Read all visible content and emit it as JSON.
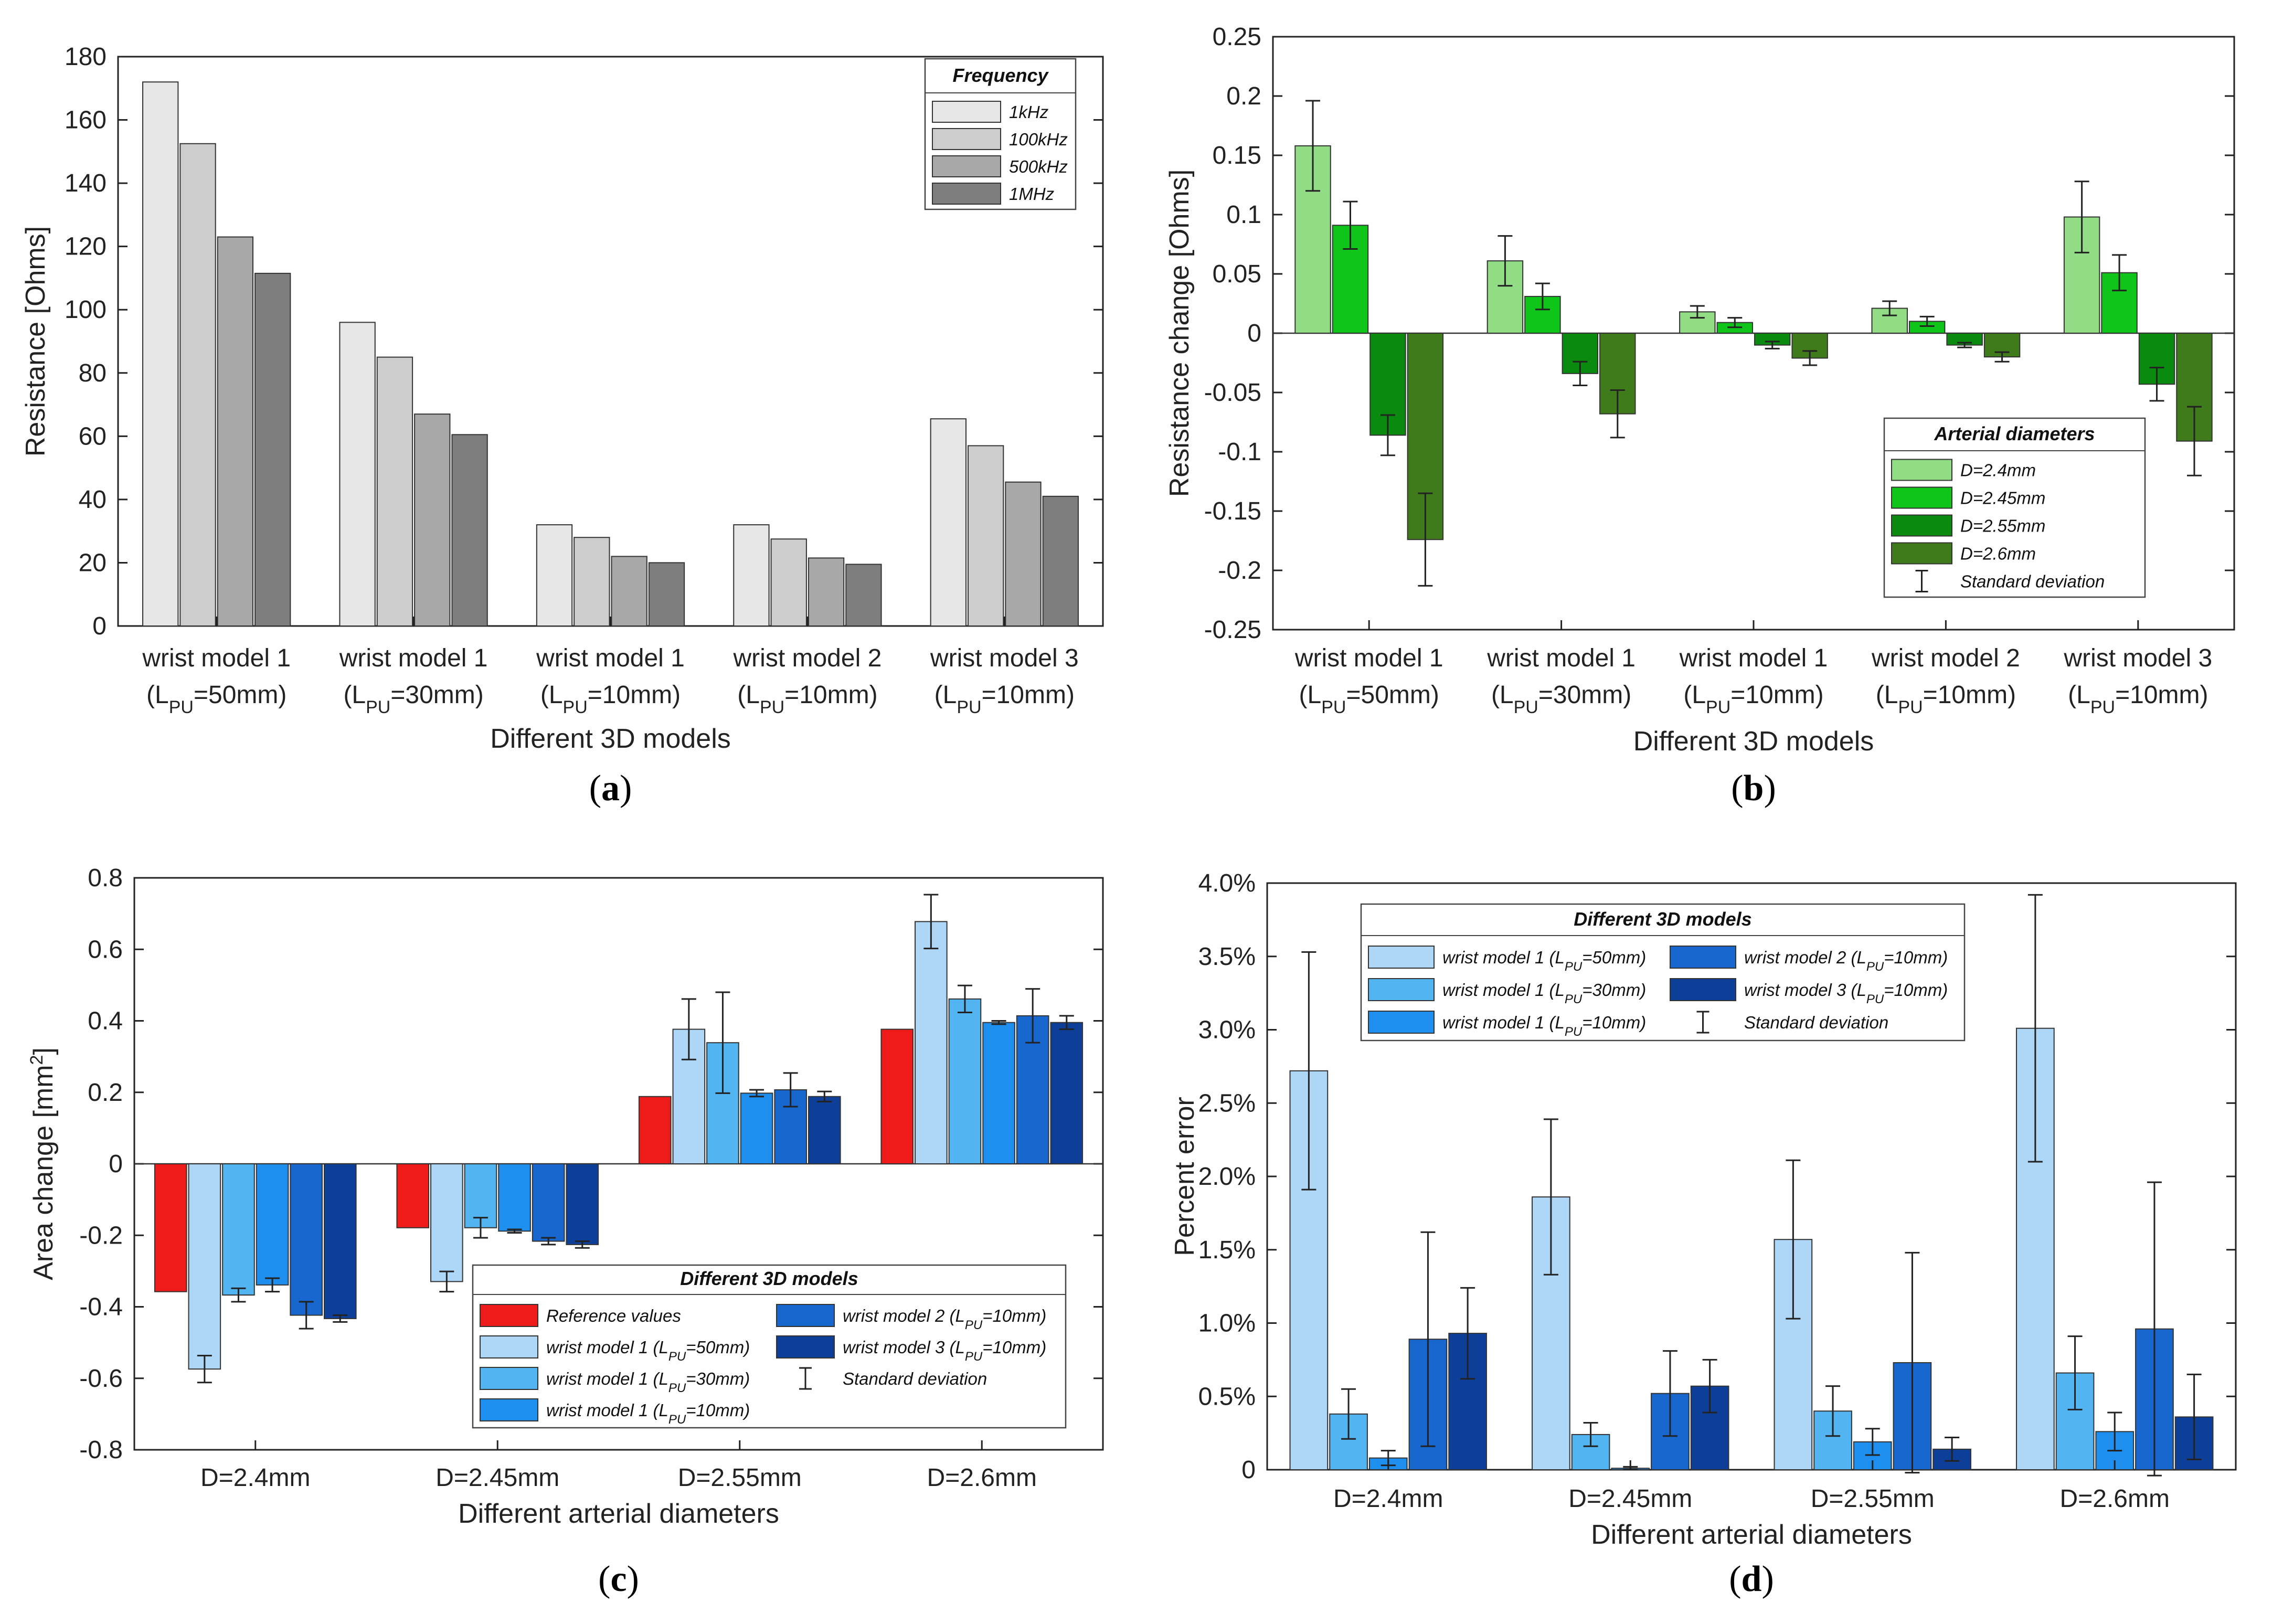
{
  "chart_data": [
    {
      "panel": "a",
      "panel_label": "(a)",
      "type": "bar",
      "xlabel": "Different 3D models",
      "ylabel": "Resistance [Ohms]",
      "ylim": [
        0,
        180
      ],
      "yticks": [
        "0",
        "20",
        "40",
        "60",
        "80",
        "100",
        "120",
        "140",
        "160",
        "180"
      ],
      "categories": [
        {
          "line1": "wrist model 1",
          "lp": "50mm"
        },
        {
          "line1": "wrist model 1",
          "lp": "30mm"
        },
        {
          "line1": "wrist model 1",
          "lp": "10mm"
        },
        {
          "line1": "wrist model 2",
          "lp": "10mm"
        },
        {
          "line1": "wrist model 3",
          "lp": "10mm"
        }
      ],
      "cat_prefix": "(L",
      "cat_sub": "PU",
      "cat_eq": "=",
      "cat_suffix": ")",
      "legend_title": "Frequency",
      "series": [
        {
          "name": "1kHz",
          "color": "#e6e6e6",
          "values": [
            172,
            96,
            32,
            32,
            65.5
          ]
        },
        {
          "name": "100kHz",
          "color": "#cdcdcd",
          "values": [
            152.5,
            85,
            28,
            27.5,
            57
          ]
        },
        {
          "name": "500kHz",
          "color": "#a8a8a8",
          "values": [
            123,
            67,
            22,
            21.5,
            45.5
          ]
        },
        {
          "name": "1MHz",
          "color": "#7e7e7e",
          "values": [
            111.5,
            60.5,
            20,
            19.5,
            41
          ]
        }
      ]
    },
    {
      "panel": "b",
      "panel_label": "(b)",
      "type": "bar",
      "xlabel": "Different 3D models",
      "ylabel": "Resistance change [Ohms]",
      "ylim": [
        -0.25,
        0.25
      ],
      "yticks": [
        "-0.25",
        "-0.2",
        "-0.15",
        "-0.1",
        "-0.05",
        "0",
        "0.05",
        "0.1",
        "0.15",
        "0.2",
        "0.25"
      ],
      "categories": [
        {
          "line1": "wrist model 1",
          "lp": "50mm"
        },
        {
          "line1": "wrist model 1",
          "lp": "30mm"
        },
        {
          "line1": "wrist model 1",
          "lp": "10mm"
        },
        {
          "line1": "wrist model 2",
          "lp": "10mm"
        },
        {
          "line1": "wrist model 3",
          "lp": "10mm"
        }
      ],
      "cat_prefix": "(L",
      "cat_sub": "PU",
      "cat_eq": "=",
      "cat_suffix": ")",
      "legend_title": "Arterial diameters",
      "errorbar_label": "Standard deviation",
      "series": [
        {
          "name": "D=2.4mm",
          "color": "#92dc86",
          "values": [
            0.158,
            0.061,
            0.018,
            0.021,
            0.098
          ],
          "errors": [
            0.038,
            0.021,
            0.005,
            0.006,
            0.03
          ]
        },
        {
          "name": "D=2.45mm",
          "color": "#10c51a",
          "values": [
            0.091,
            0.031,
            0.009,
            0.01,
            0.051
          ],
          "errors": [
            0.02,
            0.011,
            0.004,
            0.004,
            0.015
          ]
        },
        {
          "name": "D=2.55mm",
          "color": "#0b8a10",
          "values": [
            -0.086,
            -0.034,
            -0.01,
            -0.01,
            -0.043
          ],
          "errors": [
            0.017,
            0.01,
            0.003,
            0.002,
            0.014
          ]
        },
        {
          "name": "D=2.6mm",
          "color": "#3f7a1b",
          "values": [
            -0.174,
            -0.068,
            -0.021,
            -0.02,
            -0.091
          ],
          "errors": [
            0.039,
            0.02,
            0.006,
            0.004,
            0.029
          ]
        }
      ]
    },
    {
      "panel": "c",
      "panel_label": "(c)",
      "type": "bar",
      "xlabel": "Different arterial diameters",
      "ylabel_main": "Area change [mm",
      "ylabel_sup": "2",
      "ylabel_end": "]",
      "ylim": [
        -0.85,
        0.85
      ],
      "yticks": [
        "-0.8",
        "-0.6",
        "-0.4",
        "-0.2",
        "0",
        "0.2",
        "0.4",
        "0.6",
        "0.8"
      ],
      "categories": [
        "D=2.4mm",
        "D=2.45mm",
        "D=2.55mm",
        "D=2.6mm"
      ],
      "legend_title": "Different 3D models",
      "errorbar_label": "Standard deviation",
      "series": [
        {
          "name": "Reference values",
          "color": "#ef1b1b",
          "values": [
            -0.38,
            -0.19,
            0.2,
            0.4
          ]
        },
        {
          "name_pre": "wrist model 1 (L",
          "name_sub": "PU",
          "name_post": "=50mm)",
          "color": "#aed6f7",
          "values": [
            -0.61,
            -0.35,
            0.4,
            0.72
          ],
          "errors": [
            0.04,
            0.03,
            0.09,
            0.08
          ]
        },
        {
          "name_pre": "wrist model 1 (L",
          "name_sub": "PU",
          "name_post": "=30mm)",
          "color": "#53b4f2",
          "values": [
            -0.39,
            -0.19,
            0.36,
            0.49
          ],
          "errors": [
            0.02,
            0.03,
            0.15,
            0.04
          ]
        },
        {
          "name_pre": "wrist model 1 (L",
          "name_sub": "PU",
          "name_post": "=10mm)",
          "color": "#1e8fee",
          "values": [
            -0.36,
            -0.2,
            0.21,
            0.42
          ],
          "errors": [
            0.02,
            0.005,
            0.01,
            0.005
          ]
        },
        {
          "name_pre": "wrist model 2 (L",
          "name_sub": "PU",
          "name_post": "=10mm)",
          "color": "#1767cf",
          "values": [
            -0.45,
            -0.23,
            0.22,
            0.44
          ],
          "errors": [
            0.04,
            0.01,
            0.05,
            0.08
          ]
        },
        {
          "name_pre": "wrist model 3 (L",
          "name_sub": "PU",
          "name_post": "=10mm)",
          "color": "#0d3f99",
          "values": [
            -0.46,
            -0.24,
            0.2,
            0.42
          ],
          "errors": [
            0.01,
            0.01,
            0.015,
            0.02
          ]
        }
      ]
    },
    {
      "panel": "d",
      "panel_label": "(d)",
      "type": "bar",
      "xlabel": "Different arterial diameters",
      "ylabel": "Percent error",
      "ylim": [
        0,
        4.0
      ],
      "yticks": [
        "0",
        "0.5%",
        "1.0%",
        "1.5%",
        "2.0%",
        "2.5%",
        "3.0%",
        "3.5%",
        "4.0%"
      ],
      "categories": [
        "D=2.4mm",
        "D=2.45mm",
        "D=2.55mm",
        "D=2.6mm"
      ],
      "legend_title": "Different 3D models",
      "errorbar_label": "Standard deviation",
      "series": [
        {
          "name_pre": "wrist model 1 (L",
          "name_sub": "PU",
          "name_post": "=50mm)",
          "color": "#aed6f7",
          "values": [
            2.72,
            1.86,
            1.57,
            3.01
          ],
          "errors": [
            0.81,
            0.53,
            0.54,
            0.91
          ]
        },
        {
          "name_pre": "wrist model 1 (L",
          "name_sub": "PU",
          "name_post": "=30mm)",
          "color": "#53b4f2",
          "values": [
            0.38,
            0.24,
            0.4,
            0.66
          ],
          "errors": [
            0.17,
            0.08,
            0.17,
            0.25
          ]
        },
        {
          "name_pre": "wrist model 1 (L",
          "name_sub": "PU",
          "name_post": "=10mm)",
          "color": "#1e8fee",
          "values": [
            0.08,
            0.01,
            0.19,
            0.26
          ],
          "errors": [
            0.05,
            0.01,
            0.09,
            0.13
          ]
        },
        {
          "name_pre": "wrist model 2 (L",
          "name_sub": "PU",
          "name_post": "=10mm)",
          "color": "#1767cf",
          "values": [
            0.89,
            0.52,
            0.73,
            0.96
          ],
          "errors": [
            0.73,
            0.29,
            0.75,
            1.0
          ]
        },
        {
          "name_pre": "wrist model 3 (L",
          "name_sub": "PU",
          "name_post": "=10mm)",
          "color": "#0d3f99",
          "values": [
            0.93,
            0.57,
            0.14,
            0.36
          ],
          "errors": [
            0.31,
            0.18,
            0.08,
            0.29
          ]
        }
      ]
    }
  ]
}
